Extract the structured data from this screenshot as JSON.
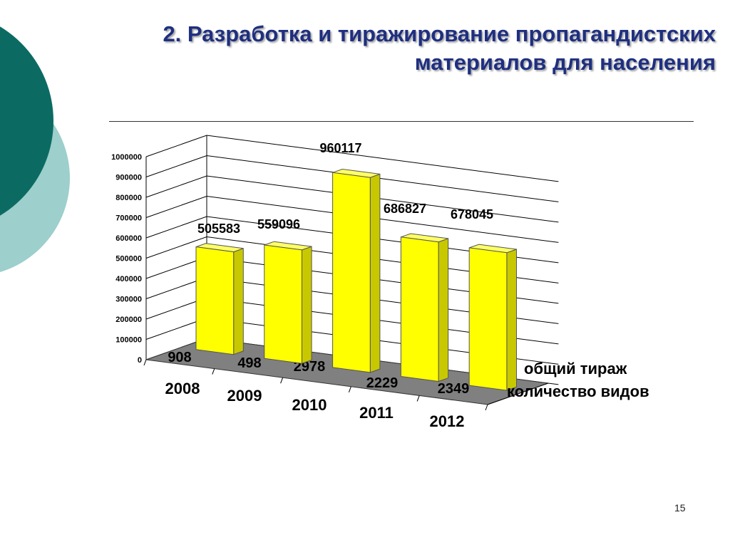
{
  "title_line1": "2. Разработка и тиражирование пропагандистских",
  "title_line2": "материалов для населения",
  "slide_number": "15",
  "colors": {
    "title": "#1f2f80",
    "bar_front": "#ffff00",
    "bar_side": "#c8c800",
    "floor": "#808080",
    "deco_dark": "#0b6b63",
    "deco_light": "#9dcfcc"
  },
  "chart_data": {
    "type": "bar",
    "categories": [
      "2008",
      "2009",
      "2010",
      "2011",
      "2012"
    ],
    "series": [
      {
        "name": "общий тираж",
        "values": [
          505583,
          559096,
          960117,
          686827,
          678045
        ]
      },
      {
        "name": "количество видов",
        "values": [
          908,
          498,
          2978,
          2229,
          2349
        ]
      }
    ],
    "ylim": [
      0,
      1000000
    ],
    "yticks": [
      "0",
      "100000",
      "200000",
      "300000",
      "400000",
      "500000",
      "600000",
      "700000",
      "800000",
      "900000",
      "1000000"
    ],
    "grid": true,
    "legend_position": "right",
    "style": "3d"
  }
}
